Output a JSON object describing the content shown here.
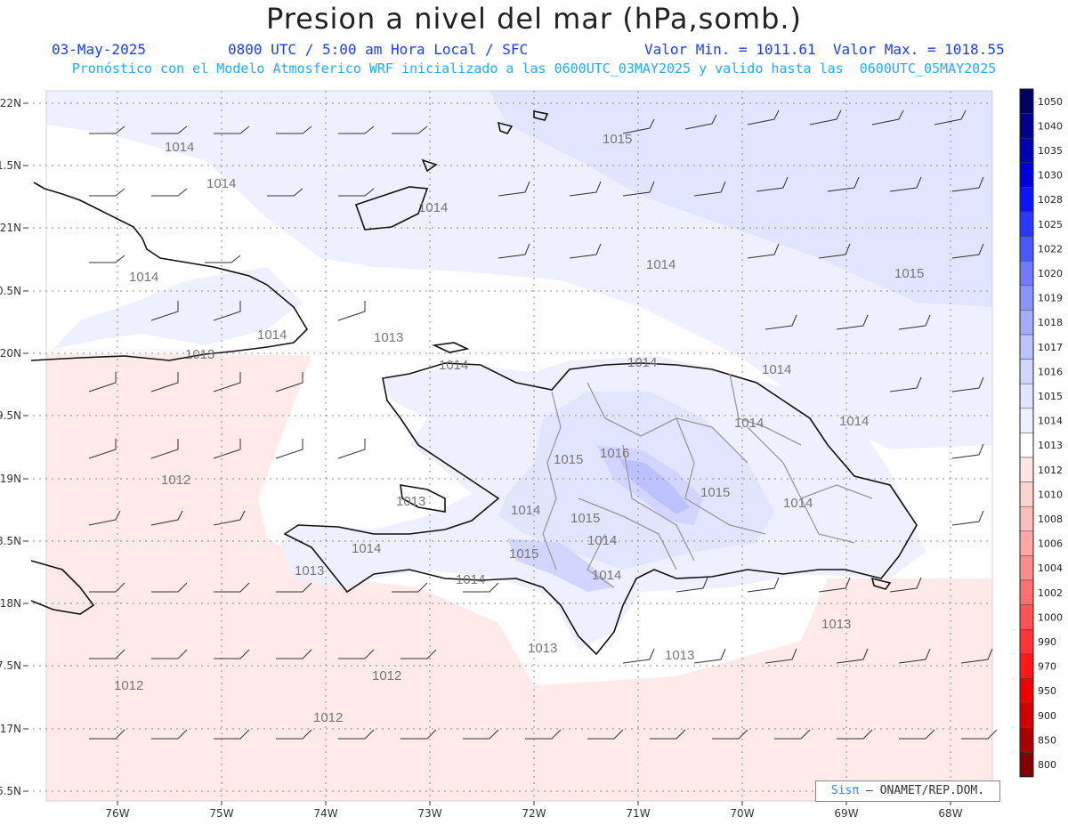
{
  "title": "Presion a nivel del mar (hPa,somb.)",
  "header": {
    "date": "03-May-2025",
    "time": "0800 UTC / 5:00 am Hora Local / SFC",
    "minmax": "Valor Min. = 1011.61  Valor Max. = 1018.55",
    "model": "Pronóstico con el Modelo Atmosferico WRF inicializado a las 0600UTC_03MAY2025 y valido hasta las  0600UTC_05MAY2025"
  },
  "axes": {
    "lat_labels": [
      "22N",
      "1.5N",
      "21N",
      "0.5N",
      "20N",
      "9.5N",
      "19N",
      "8.5N",
      "18N",
      "7.5N",
      "17N",
      "6.5N"
    ],
    "lon_labels": [
      "76W",
      "75W",
      "74W",
      "73W",
      "72W",
      "71W",
      "70W",
      "69W",
      "68W"
    ]
  },
  "colorbar": {
    "labels": [
      "1050",
      "1040",
      "1035",
      "1030",
      "1028",
      "1025",
      "1022",
      "1020",
      "1019",
      "1018",
      "1017",
      "1016",
      "1015",
      "1014",
      "1013",
      "1012",
      "1010",
      "1008",
      "1006",
      "1004",
      "1002",
      "1000",
      "990",
      "970",
      "950",
      "900",
      "850",
      "800"
    ],
    "colors": [
      "#000060",
      "#00008c",
      "#0000b4",
      "#0000dc",
      "#0a14ff",
      "#2a37ff",
      "#4a58ff",
      "#6f7aff",
      "#8a94ff",
      "#a4acff",
      "#bcc2ff",
      "#d2d6ff",
      "#e2e5ff",
      "#eef0ff",
      "#ffffff",
      "#ffe6e6",
      "#ffd2d2",
      "#ffbcbc",
      "#ffa6a6",
      "#ff8c8c",
      "#ff7070",
      "#ff5252",
      "#ff3434",
      "#ff1818",
      "#f00000",
      "#d00000",
      "#aa0000",
      "#800000"
    ]
  },
  "contour_labels": [
    "1015",
    "1014",
    "1014",
    "1014",
    "1014",
    "1014",
    "1015",
    "1014",
    "1013",
    "1013",
    "1014",
    "1014",
    "1014",
    "1014",
    "1014",
    "1015",
    "1016",
    "1015",
    "1014",
    "1014",
    "1015",
    "1014",
    "1013",
    "1014",
    "1014",
    "1015",
    "1014",
    "1013",
    "1013",
    "1013",
    "1013",
    "1012",
    "1012",
    "1012",
    "1012"
  ],
  "credit": {
    "sis": "Sisπ",
    "text": " – ONAMET/REP.DOM."
  }
}
